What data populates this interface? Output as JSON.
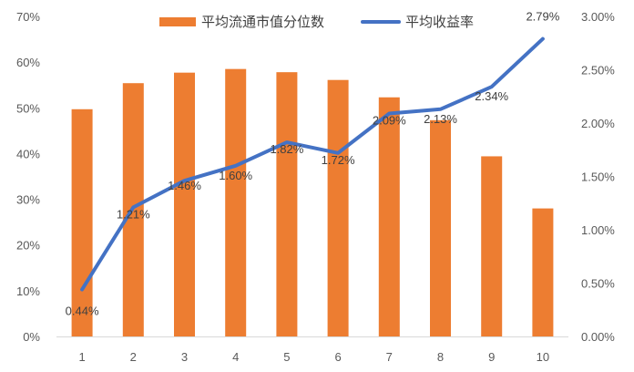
{
  "chart_data": {
    "type": "bar+line",
    "categories": [
      "1",
      "2",
      "3",
      "4",
      "5",
      "6",
      "7",
      "8",
      "9",
      "10"
    ],
    "series": [
      {
        "name": "平均流通市值分位数",
        "kind": "bar",
        "axis": "left",
        "color": "#ED7D31",
        "values": [
          49.7,
          55.4,
          57.7,
          58.5,
          57.8,
          56.1,
          52.3,
          47.3,
          39.4,
          28.0
        ]
      },
      {
        "name": "平均收益率",
        "kind": "line",
        "axis": "right",
        "color": "#4472C4",
        "values": [
          0.44,
          1.21,
          1.46,
          1.6,
          1.82,
          1.72,
          2.09,
          2.13,
          2.34,
          2.79
        ],
        "data_labels": [
          "0.44%",
          "1.21%",
          "1.46%",
          "1.60%",
          "1.82%",
          "1.72%",
          "2.09%",
          "2.13%",
          "2.34%",
          "2.79%"
        ]
      }
    ],
    "left_axis": {
      "min": 0,
      "max": 70,
      "step": 10,
      "ticks": [
        "0%",
        "10%",
        "20%",
        "30%",
        "40%",
        "50%",
        "60%",
        "70%"
      ]
    },
    "right_axis": {
      "min": 0,
      "max": 3,
      "step": 0.5,
      "ticks": [
        "0.00%",
        "0.50%",
        "1.00%",
        "1.50%",
        "2.00%",
        "2.50%",
        "3.00%"
      ]
    },
    "grid": false,
    "legend": "top"
  }
}
